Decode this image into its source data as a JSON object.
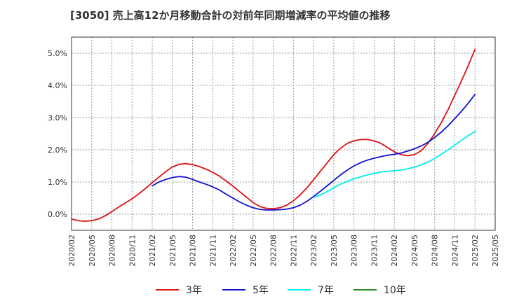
{
  "chart_data": {
    "type": "line",
    "title": "[3050]  売上高12か月移動合計の対前年同期増減率の平均値の推移",
    "xlabel": "",
    "ylabel": "",
    "ylim": [
      -0.5,
      5.5
    ],
    "yticks": [
      "0.0%",
      "1.0%",
      "2.0%",
      "3.0%",
      "4.0%",
      "5.0%"
    ],
    "ytick_values": [
      0,
      1,
      2,
      3,
      4,
      5
    ],
    "x_tick_labels": [
      "2020/02",
      "2020/05",
      "2020/08",
      "2020/11",
      "2021/02",
      "2021/05",
      "2021/08",
      "2021/11",
      "2022/02",
      "2022/05",
      "2022/08",
      "2022/11",
      "2023/02",
      "2023/05",
      "2023/08",
      "2023/11",
      "2024/02",
      "2024/05",
      "2024/08",
      "2024/11",
      "2025/02",
      "2025/05"
    ],
    "grid": true,
    "legend_position": "bottom",
    "series": [
      {
        "name": "3年",
        "color": "#dd1111",
        "x": [
          "2020/02",
          "2020/03",
          "2020/04",
          "2020/05",
          "2020/06",
          "2020/07",
          "2020/08",
          "2020/09",
          "2020/10",
          "2020/11",
          "2020/12",
          "2021/01",
          "2021/02",
          "2021/03",
          "2021/04",
          "2021/05",
          "2021/06",
          "2021/07",
          "2021/08",
          "2021/09",
          "2021/10",
          "2021/11",
          "2021/12",
          "2022/01",
          "2022/02",
          "2022/03",
          "2022/04",
          "2022/05",
          "2022/06",
          "2022/07",
          "2022/08",
          "2022/09",
          "2022/10",
          "2022/11",
          "2022/12",
          "2023/01",
          "2023/02",
          "2023/03",
          "2023/04",
          "2023/05",
          "2023/06",
          "2023/07",
          "2023/08",
          "2023/09",
          "2023/10",
          "2023/11",
          "2023/12",
          "2024/01",
          "2024/02",
          "2024/03",
          "2024/04",
          "2024/05",
          "2024/06",
          "2024/07",
          "2024/08",
          "2024/09",
          "2024/10",
          "2024/11",
          "2024/12",
          "2025/01",
          "2025/02"
        ],
        "values": [
          -0.15,
          -0.2,
          -0.22,
          -0.2,
          -0.15,
          -0.05,
          0.08,
          0.22,
          0.35,
          0.48,
          0.63,
          0.8,
          0.98,
          1.15,
          1.32,
          1.47,
          1.55,
          1.57,
          1.54,
          1.48,
          1.4,
          1.3,
          1.18,
          1.03,
          0.87,
          0.7,
          0.53,
          0.36,
          0.24,
          0.18,
          0.17,
          0.2,
          0.28,
          0.42,
          0.6,
          0.82,
          1.07,
          1.33,
          1.59,
          1.85,
          2.05,
          2.2,
          2.28,
          2.32,
          2.32,
          2.28,
          2.2,
          2.07,
          1.94,
          1.85,
          1.82,
          1.85,
          1.97,
          2.2,
          2.5,
          2.85,
          3.25,
          3.7,
          4.15,
          4.62,
          5.12
        ]
      },
      {
        "name": "5年",
        "color": "#1111cc",
        "x": [
          "2021/02",
          "2021/03",
          "2021/04",
          "2021/05",
          "2021/06",
          "2021/07",
          "2021/08",
          "2021/09",
          "2021/10",
          "2021/11",
          "2021/12",
          "2022/01",
          "2022/02",
          "2022/03",
          "2022/04",
          "2022/05",
          "2022/06",
          "2022/07",
          "2022/08",
          "2022/09",
          "2022/10",
          "2022/11",
          "2022/12",
          "2023/01",
          "2023/02",
          "2023/03",
          "2023/04",
          "2023/05",
          "2023/06",
          "2023/07",
          "2023/08",
          "2023/09",
          "2023/10",
          "2023/11",
          "2023/12",
          "2024/01",
          "2024/02",
          "2024/03",
          "2024/04",
          "2024/05",
          "2024/06",
          "2024/07",
          "2024/08",
          "2024/09",
          "2024/10",
          "2024/11",
          "2024/12",
          "2025/01",
          "2025/02"
        ],
        "values": [
          0.88,
          1.0,
          1.08,
          1.14,
          1.17,
          1.15,
          1.08,
          1.0,
          0.93,
          0.85,
          0.75,
          0.62,
          0.5,
          0.38,
          0.28,
          0.2,
          0.15,
          0.13,
          0.13,
          0.14,
          0.16,
          0.2,
          0.28,
          0.4,
          0.55,
          0.71,
          0.88,
          1.05,
          1.22,
          1.37,
          1.5,
          1.6,
          1.68,
          1.74,
          1.79,
          1.83,
          1.86,
          1.9,
          1.96,
          2.03,
          2.12,
          2.23,
          2.38,
          2.55,
          2.75,
          2.97,
          3.2,
          3.45,
          3.72
        ]
      },
      {
        "name": "7年",
        "color": "#00eeee",
        "x": [
          "2023/02",
          "2023/03",
          "2023/04",
          "2023/05",
          "2023/06",
          "2023/07",
          "2023/08",
          "2023/09",
          "2023/10",
          "2023/11",
          "2023/12",
          "2024/01",
          "2024/02",
          "2024/03",
          "2024/04",
          "2024/05",
          "2024/06",
          "2024/07",
          "2024/08",
          "2024/09",
          "2024/10",
          "2024/11",
          "2024/12",
          "2025/01",
          "2025/02"
        ],
        "values": [
          0.52,
          0.6,
          0.7,
          0.82,
          0.93,
          1.02,
          1.1,
          1.16,
          1.22,
          1.27,
          1.31,
          1.33,
          1.35,
          1.37,
          1.41,
          1.46,
          1.53,
          1.62,
          1.73,
          1.86,
          2.0,
          2.15,
          2.3,
          2.44,
          2.57
        ]
      },
      {
        "name": "10年",
        "color": "#228b22",
        "x": [],
        "values": []
      }
    ]
  }
}
